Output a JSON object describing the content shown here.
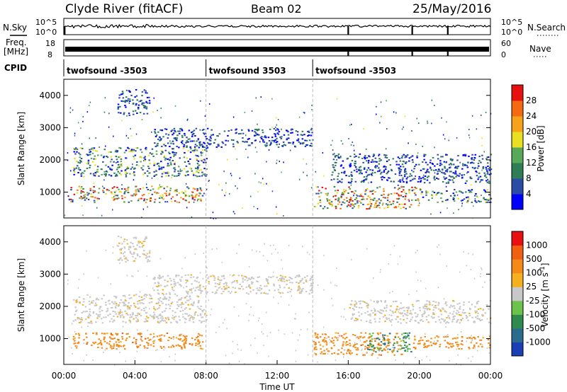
{
  "header": {
    "station": "Clyde River (fitACF)",
    "beam": "Beam 02",
    "date": "25/May/2016"
  },
  "left_labels": {
    "nsky": "N.Sky",
    "freq_line1": "Freq.",
    "freq_line2": "[MHz]",
    "cpid": "CPID"
  },
  "right_labels": {
    "nsearch": "N.Search",
    "nave": "Nave"
  },
  "noise_panel": {
    "left_ticks": [
      "10^5",
      "10^0"
    ],
    "right_ticks": [
      "10^5",
      "10^0"
    ]
  },
  "freq_panel": {
    "left_ticks": [
      "18",
      "8"
    ],
    "right_ticks": [
      "60",
      "0"
    ]
  },
  "cpid_segments": [
    {
      "label": "twofsound -3503",
      "start_h": 0,
      "end_h": 8.0
    },
    {
      "label": "twofsound 3503",
      "start_h": 8.0,
      "end_h": 14.0
    },
    {
      "label": "twofsound -3503",
      "start_h": 14.0,
      "end_h": 24.0
    }
  ],
  "chart_data": [
    {
      "type": "heatmap",
      "name": "power",
      "xlabel": "",
      "ylabel": "Slant Range [km]",
      "xlim": [
        0,
        24
      ],
      "ylim": [
        200,
        4500
      ],
      "y_ticks": [
        "1000",
        "2000",
        "3000",
        "4000"
      ],
      "colorbar": {
        "label": "Power [dB]",
        "ticks": [
          "4",
          "8",
          "12",
          "16",
          "20",
          "24",
          "28"
        ],
        "colors": [
          "#0000ff",
          "#2b4ca6",
          "#2e7d57",
          "#58a85a",
          "#e8e020",
          "#f7a21b",
          "#f56a10",
          "#e61010"
        ]
      },
      "regions": [
        {
          "t": [
            0.2,
            7.8
          ],
          "r": [
            700,
            1200
          ],
          "level": "high"
        },
        {
          "t": [
            0.5,
            8.0
          ],
          "r": [
            1500,
            2400
          ],
          "level": "mid"
        },
        {
          "t": [
            3.0,
            4.8
          ],
          "r": [
            3400,
            4200
          ],
          "level": "low"
        },
        {
          "t": [
            5.0,
            14.0
          ],
          "r": [
            2400,
            3000
          ],
          "level": "low"
        },
        {
          "t": [
            14.0,
            20.0
          ],
          "r": [
            500,
            1200
          ],
          "level": "high"
        },
        {
          "t": [
            15.0,
            24.0
          ],
          "r": [
            1300,
            2200
          ],
          "level": "low"
        },
        {
          "t": [
            20.0,
            24.0
          ],
          "r": [
            700,
            1100
          ],
          "level": "mid"
        }
      ]
    },
    {
      "type": "heatmap",
      "name": "velocity",
      "xlabel": "Time UT",
      "ylabel": "Slant Range [km]",
      "xlim": [
        0,
        24
      ],
      "ylim": [
        200,
        4500
      ],
      "x_ticks": [
        "00:00",
        "04:00",
        "08:00",
        "12:00",
        "16:00",
        "20:00",
        "00:00"
      ],
      "y_ticks": [
        "1000",
        "2000",
        "3000",
        "4000"
      ],
      "colorbar": {
        "label": "Velocity [m s^-1]",
        "ticks": [
          "1000",
          "500",
          "100",
          "25",
          "-25",
          "-100",
          "-500",
          "-1000"
        ],
        "colors": [
          "#1b3fb5",
          "#2a6b8e",
          "#2f8a4e",
          "#6cc24a",
          "#c8c8c8",
          "#f5b020",
          "#f58a18",
          "#f06010",
          "#e81010"
        ]
      },
      "regions": [
        {
          "t": [
            0.5,
            7.8
          ],
          "r": [
            700,
            1200
          ],
          "level": "away"
        },
        {
          "t": [
            0.5,
            8.0
          ],
          "r": [
            1500,
            2400
          ],
          "level": "ground"
        },
        {
          "t": [
            3.0,
            4.8
          ],
          "r": [
            3400,
            4200
          ],
          "level": "ground"
        },
        {
          "t": [
            5.0,
            14.0
          ],
          "r": [
            2400,
            3000
          ],
          "level": "ground"
        },
        {
          "t": [
            14.0,
            19.0
          ],
          "r": [
            500,
            1200
          ],
          "level": "away"
        },
        {
          "t": [
            17.0,
            19.5
          ],
          "r": [
            600,
            1200
          ],
          "level": "toward"
        },
        {
          "t": [
            19.5,
            24.0
          ],
          "r": [
            700,
            1100
          ],
          "level": "away"
        },
        {
          "t": [
            16.0,
            24.0
          ],
          "r": [
            1500,
            2200
          ],
          "level": "ground"
        }
      ]
    }
  ]
}
